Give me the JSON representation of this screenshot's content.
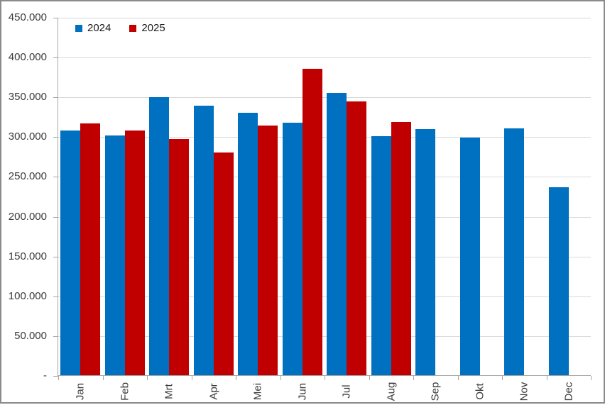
{
  "chart_data": {
    "type": "bar",
    "title": "",
    "xlabel": "",
    "ylabel": "",
    "categories": [
      "Jan",
      "Feb",
      "Mrt",
      "Apr",
      "Mei",
      "Jun",
      "Jul",
      "Aug",
      "Sep",
      "Okt",
      "Nov",
      "Dec"
    ],
    "series": [
      {
        "name": "2024",
        "color": "#0070C0",
        "values": [
          307000,
          301000,
          349500,
          338500,
          330000,
          317500,
          355000,
          300000,
          309000,
          298500,
          310500,
          236000
        ]
      },
      {
        "name": "2025",
        "color": "#C00000",
        "values": [
          316500,
          307500,
          297000,
          280000,
          313500,
          385000,
          344000,
          318000,
          null,
          null,
          null,
          null
        ]
      }
    ],
    "ylim": [
      0,
      450000
    ],
    "ytick_step": 50000,
    "ytick_labels": [
      "450.000",
      "400.000",
      "350.000",
      "300.000",
      "250.000",
      "200.000",
      "150.000",
      "100.000",
      "50.000",
      "-"
    ],
    "grid": true,
    "legend_position": "top-left",
    "colors": {
      "gridline": "#D9D9D9",
      "axis": "#A6A6A6",
      "text": "#3B3B3B",
      "background": "#FFFFFF",
      "border": "#8A8A8A"
    }
  },
  "legend": {
    "items": [
      {
        "label": "2024",
        "color": "#0070C0"
      },
      {
        "label": "2025",
        "color": "#C00000"
      }
    ]
  }
}
